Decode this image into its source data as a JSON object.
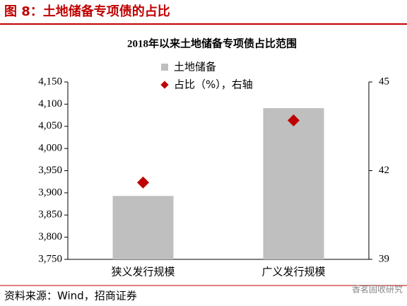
{
  "header": "图 8：土地储备专项债的占比",
  "source": "资料来源：Wind，招商证券",
  "watermark": "香茗固收研究",
  "chart_data": {
    "type": "bar_diamond",
    "title": "2018年以来土地储备专项债占比范围",
    "categories": [
      "狭义发行规模",
      "广义发行规模"
    ],
    "series": [
      {
        "name": "土地储备",
        "color": "#bfbfbf",
        "values": [
          3893,
          4091
        ]
      },
      {
        "name": "占比（%），右轴",
        "color": "#c00000",
        "axis": "y2",
        "values": [
          41.6,
          43.7
        ]
      }
    ],
    "ylim": [
      3750,
      4150
    ],
    "yticks": [
      {
        "value": 3750,
        "label": "3,750"
      },
      {
        "value": 3800,
        "label": "3,800"
      },
      {
        "value": 3850,
        "label": "3,850"
      },
      {
        "value": 3900,
        "label": "3,900"
      },
      {
        "value": 3950,
        "label": "3,950"
      },
      {
        "value": 4000,
        "label": "4,000"
      },
      {
        "value": 4050,
        "label": "4,050"
      },
      {
        "value": 4100,
        "label": "4,100"
      },
      {
        "value": 4150,
        "label": "4,150"
      }
    ],
    "y2lim": [
      39,
      45
    ],
    "y2ticks": [
      39,
      42,
      45
    ]
  }
}
